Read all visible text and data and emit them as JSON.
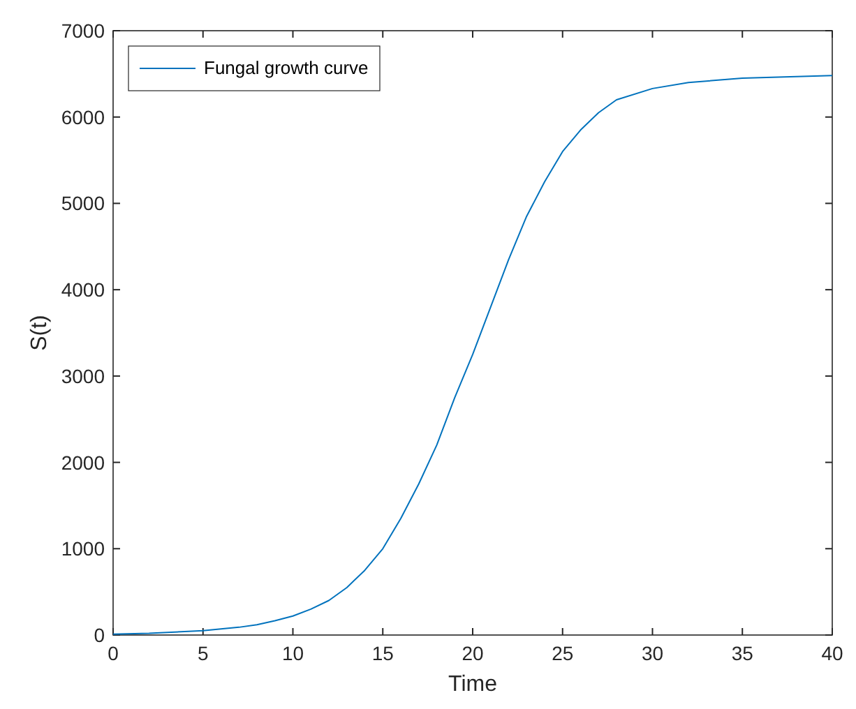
{
  "chart_data": {
    "type": "line",
    "xlabel": "Time",
    "ylabel": "S(t)",
    "series": [
      {
        "name": "Fungal growth curve",
        "color": "#0072bd",
        "x": [
          0,
          2,
          5,
          7,
          8,
          9,
          10,
          11,
          12,
          13,
          14,
          15,
          16,
          17,
          18,
          19,
          20,
          21,
          22,
          23,
          24,
          25,
          26,
          27,
          28,
          30,
          32,
          35,
          40
        ],
        "values": [
          10,
          20,
          50,
          90,
          120,
          165,
          220,
          300,
          400,
          550,
          750,
          1000,
          1350,
          1750,
          2200,
          2750,
          3250,
          3800,
          4350,
          4850,
          5250,
          5600,
          5850,
          6050,
          6200,
          6330,
          6400,
          6450,
          6480
        ]
      }
    ],
    "xlim": [
      0,
      40
    ],
    "xticks": [
      0,
      5,
      10,
      15,
      20,
      25,
      30,
      35,
      40
    ],
    "ylim": [
      0,
      7000
    ],
    "yticks": [
      0,
      1000,
      2000,
      3000,
      4000,
      5000,
      6000,
      7000
    ],
    "grid": false,
    "legend": "top left",
    "line_style": "solid",
    "marker": "none"
  }
}
